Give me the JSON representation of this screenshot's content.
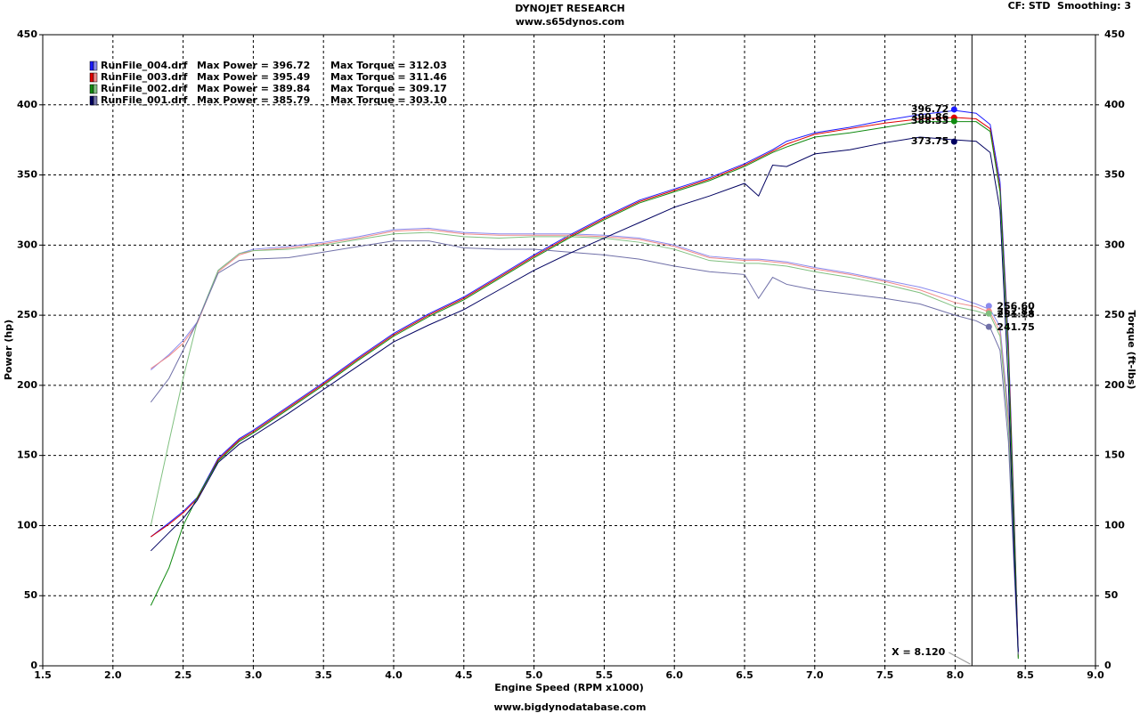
{
  "chart_data": {
    "type": "line",
    "title": "DYNOJET RESEARCH",
    "subtitle": "www.s65dynos.com",
    "settings_note": "CF: STD  Smoothing: 3",
    "x_label": "Engine Speed (RPM x1000)",
    "y_label": "Power (hp)",
    "y2_label": "Torque (ft-lbs)",
    "footer": "www.bigdynodatabase.com",
    "cursor_x": 8.12,
    "cursor_label": "X = 8.120",
    "xlim": [
      1.5,
      9.0
    ],
    "xticks": [
      1.5,
      {
        "value": 2,
        "label": "2.0"
      },
      2.5,
      {
        "value": 3,
        "label": "3.0"
      },
      3.5,
      {
        "value": 4,
        "label": "4.0"
      },
      4.5,
      {
        "value": 5,
        "label": "5.0"
      },
      5.5,
      {
        "value": 6,
        "label": "6.0"
      },
      6.5,
      {
        "value": 7,
        "label": "7.0"
      },
      7.5,
      {
        "value": 8,
        "label": "8.0"
      },
      8.5,
      {
        "value": 9,
        "label": "9.0"
      }
    ],
    "ylim": [
      0,
      450
    ],
    "yticks": [
      0,
      50,
      100,
      150,
      200,
      250,
      300,
      350,
      400,
      450
    ],
    "y2lim": [
      0,
      450
    ],
    "y2ticks": [
      0,
      50,
      100,
      150,
      200,
      250,
      300,
      350,
      400,
      450
    ],
    "grid": true,
    "x": [
      2.27,
      2.4,
      2.5,
      2.6,
      2.75,
      2.9,
      3.0,
      3.25,
      3.5,
      3.75,
      4.0,
      4.25,
      4.5,
      4.75,
      5.0,
      5.25,
      5.5,
      5.75,
      6.0,
      6.25,
      6.5,
      6.6,
      6.7,
      6.8,
      7.0,
      7.25,
      7.5,
      7.75,
      8.0,
      8.15,
      8.25,
      8.32,
      8.38,
      8.42,
      8.45
    ],
    "runs": [
      {
        "name": "RunFile_004.drf",
        "max_power_label": "Max Power = 396.72",
        "max_torque_label": "Max Torque = 312.03",
        "color": "#1a1aff",
        "torque_color": "#8a8aee",
        "power": [
          92,
          102,
          110,
          120,
          148,
          162,
          168,
          185,
          202,
          220,
          237,
          251,
          263,
          278,
          293,
          307,
          320,
          332,
          340,
          348,
          358,
          363,
          368,
          374,
          380,
          384,
          389,
          393,
          396,
          394,
          386,
          345,
          230,
          110,
          8
        ],
        "torque": [
          211,
          222,
          232,
          245,
          282,
          294,
          297,
          299,
          302,
          306,
          311,
          312,
          309,
          308,
          308,
          308,
          307,
          305,
          300,
          292,
          290,
          290,
          289,
          288,
          284,
          280,
          275,
          270,
          263,
          258,
          254,
          242,
          180,
          90,
          8
        ],
        "cursor_values": [
          396.72,
          256.6
        ],
        "cursor_value_labels": [
          "396.72",
          "256.60"
        ]
      },
      {
        "name": "RunFile_003.drf",
        "max_power_label": "Max Power = 395.49",
        "max_torque_label": "Max Torque = 311.46",
        "color": "#e00000",
        "torque_color": "#f08a8a",
        "power": [
          92,
          101,
          109,
          119,
          147,
          161,
          167,
          184,
          201,
          219,
          236,
          250,
          262,
          277,
          292,
          306,
          319,
          331,
          339,
          347,
          357,
          362,
          367,
          372,
          379,
          383,
          387,
          390,
          391,
          390,
          383,
          340,
          225,
          105,
          6
        ],
        "torque": [
          212,
          221,
          230,
          244,
          281,
          293,
          296,
          298,
          301,
          305,
          310,
          311,
          308,
          307,
          307,
          307,
          306,
          304,
          299,
          291,
          289,
          289,
          288,
          287,
          283,
          279,
          274,
          268,
          259,
          256,
          252,
          238,
          175,
          85,
          7
        ],
        "cursor_values": [
          390.86,
          252.81
        ],
        "cursor_value_labels": [
          "390.86",
          "252.81"
        ]
      },
      {
        "name": "RunFile_002.drf",
        "max_power_label": "Max Power = 389.84",
        "max_torque_label": "Max Torque = 309.17",
        "color": "#108a10",
        "torque_color": "#80c080",
        "power": [
          43,
          70,
          100,
          120,
          146,
          160,
          166,
          183,
          200,
          218,
          235,
          249,
          261,
          276,
          291,
          305,
          318,
          330,
          338,
          346,
          356,
          361,
          366,
          370,
          377,
          380,
          384,
          388,
          388,
          388,
          381,
          338,
          220,
          100,
          5
        ],
        "torque": [
          100,
          160,
          205,
          245,
          282,
          294,
          296,
          297,
          300,
          304,
          308,
          309,
          306,
          305,
          306,
          306,
          305,
          302,
          297,
          289,
          287,
          287,
          286,
          285,
          281,
          277,
          272,
          266,
          256,
          253,
          250,
          235,
          170,
          80,
          6
        ],
        "cursor_values": [
          388.33,
          251.18
        ],
        "cursor_value_labels": [
          "388.33",
          "251.18"
        ]
      },
      {
        "name": "RunFile_001.drf",
        "max_power_label": "Max Power = 385.79",
        "max_torque_label": "Max Torque = 303.10",
        "color": "#000060",
        "torque_color": "#7070a8",
        "power": [
          82,
          95,
          105,
          118,
          145,
          158,
          164,
          180,
          197,
          214,
          231,
          243,
          254,
          268,
          282,
          294,
          305,
          316,
          327,
          335,
          344,
          335,
          357,
          356,
          365,
          368,
          373,
          377,
          375,
          374,
          366,
          325,
          200,
          80,
          10
        ],
        "torque": [
          188,
          205,
          225,
          245,
          280,
          289,
          290,
          291,
          295,
          299,
          303,
          303,
          298,
          297,
          297,
          295,
          293,
          290,
          285,
          281,
          279,
          262,
          277,
          272,
          268,
          265,
          262,
          258,
          250,
          246,
          241,
          225,
          160,
          70,
          8
        ],
        "cursor_values": [
          373.75,
          241.75
        ],
        "cursor_value_labels": [
          "373.75",
          "241.75"
        ]
      }
    ]
  }
}
